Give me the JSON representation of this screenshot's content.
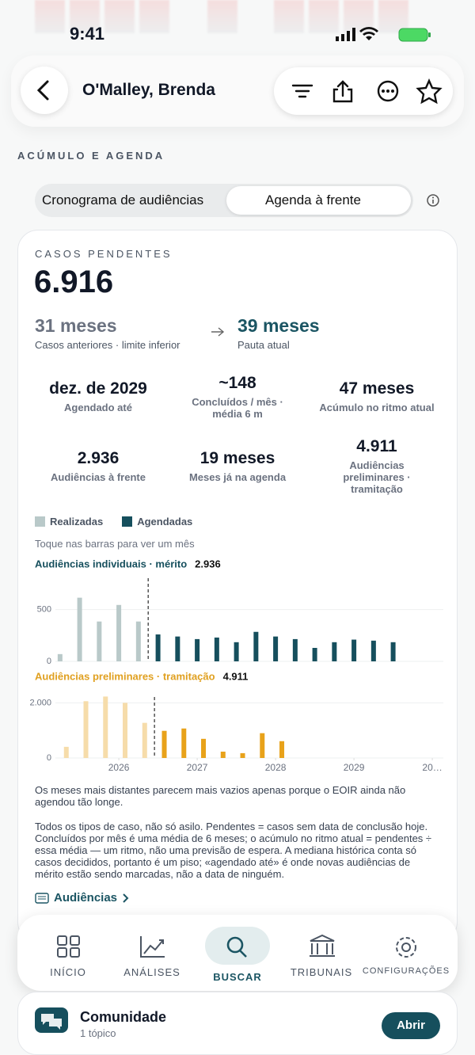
{
  "status_bar": {
    "time": "9:41"
  },
  "header": {
    "title": "O'Malley, Brenda"
  },
  "section": {
    "title": "ACÚMULO E AGENDA"
  },
  "segmented": {
    "options": [
      "Cronograma de audiências",
      "Agenda à frente"
    ]
  },
  "card": {
    "label": "CASOS PENDENTES",
    "value": "6.916",
    "comparison": {
      "from_value": "31 meses",
      "from_label": "Casos anteriores · limite inferior",
      "to_value": "39 meses",
      "to_label": "Pauta atual"
    },
    "stats": [
      {
        "value": "dez. de 2029",
        "label": "Agendado até"
      },
      {
        "value": "~148",
        "label": "Concluídos / mês · média 6 m"
      },
      {
        "value": "47 meses",
        "label": "Acúmulo no ritmo atual"
      },
      {
        "value": "2.936",
        "label": "Audiências à frente"
      },
      {
        "value": "19 meses",
        "label": "Meses já na agenda"
      },
      {
        "value": "4.911",
        "label": "Audiências preliminares · tramitação"
      }
    ],
    "hint": "Toque nas barras para ver um mês",
    "notes": [
      "Os meses mais distantes parecem mais vazios apenas porque o EOIR ainda não agendou tão longe.",
      "Todos os tipos de caso, não só asilo. Pendentes = casos sem data de conclusão hoje. Concluídos por mês é uma média de 6 meses; o acúmulo no ritmo atual = pendentes ÷ essa média — um ritmo, não uma previsão de espera. A mediana histórica conta só casos decididos, portanto é um piso; «agendado até» é onde novas audiências de mérito estão sendo marcadas, não a data de ninguém."
    ],
    "link": "Audiências"
  },
  "chart_data": [
    {
      "type": "bar",
      "title": "Audiências individuais · mérito",
      "subtitle": "2.936",
      "xlim": [
        2025.1,
        2030.1
      ],
      "ylim": [
        0,
        880
      ],
      "yticks": [
        0,
        500
      ],
      "grid": true,
      "series": [
        {
          "name": "Realizadas",
          "color": "#b9c9c9",
          "x": [
            2025.25,
            2025.5,
            2025.75,
            2026,
            2026.25
          ],
          "values": [
            70,
            615,
            385,
            545,
            385
          ]
        },
        {
          "name": "Agendadas",
          "color": "#164f5d",
          "x": [
            2026.5,
            2026.75,
            2027,
            2027.25,
            2027.5,
            2027.75,
            2028,
            2028.25,
            2028.5,
            2028.75,
            2029,
            2029.25,
            2029.5
          ],
          "values": [
            260,
            240,
            215,
            230,
            185,
            285,
            240,
            215,
            130,
            185,
            210,
            200,
            185
          ]
        }
      ]
    },
    {
      "type": "bar",
      "title": "Audiências preliminares · tramitação",
      "subtitle": "4.911",
      "xlim": [
        2025.1,
        2030.1
      ],
      "ylim": [
        0,
        2500
      ],
      "yticks": [
        0,
        {
          "value": 2000,
          "label": "2.000"
        }
      ],
      "grid": true,
      "xticks": [
        2026,
        2027,
        2028,
        2029,
        {
          "value": 2030,
          "label": "20…"
        }
      ],
      "series": [
        {
          "color": "#f6dcaa",
          "x": [
            2025.33,
            2025.58,
            2025.83,
            2026.08,
            2026.33
          ],
          "values": [
            405,
            2060,
            2230,
            2000,
            1275
          ]
        },
        {
          "color": "#e8a21a",
          "x": [
            2026.58,
            2026.83,
            2027.08,
            2027.33,
            2027.58,
            2027.83,
            2028.08
          ],
          "values": [
            985,
            1070,
            695,
            230,
            175,
            900,
            610
          ]
        }
      ]
    }
  ],
  "tab_bar": {
    "items": [
      "INÍCIO",
      "ANÁLISES",
      "BUSCAR",
      "TRIBUNAIS",
      "CONFIGURAÇÕES"
    ]
  },
  "community": {
    "title": "Comunidade",
    "subtitle": "1 tópico",
    "button": "Abrir"
  }
}
